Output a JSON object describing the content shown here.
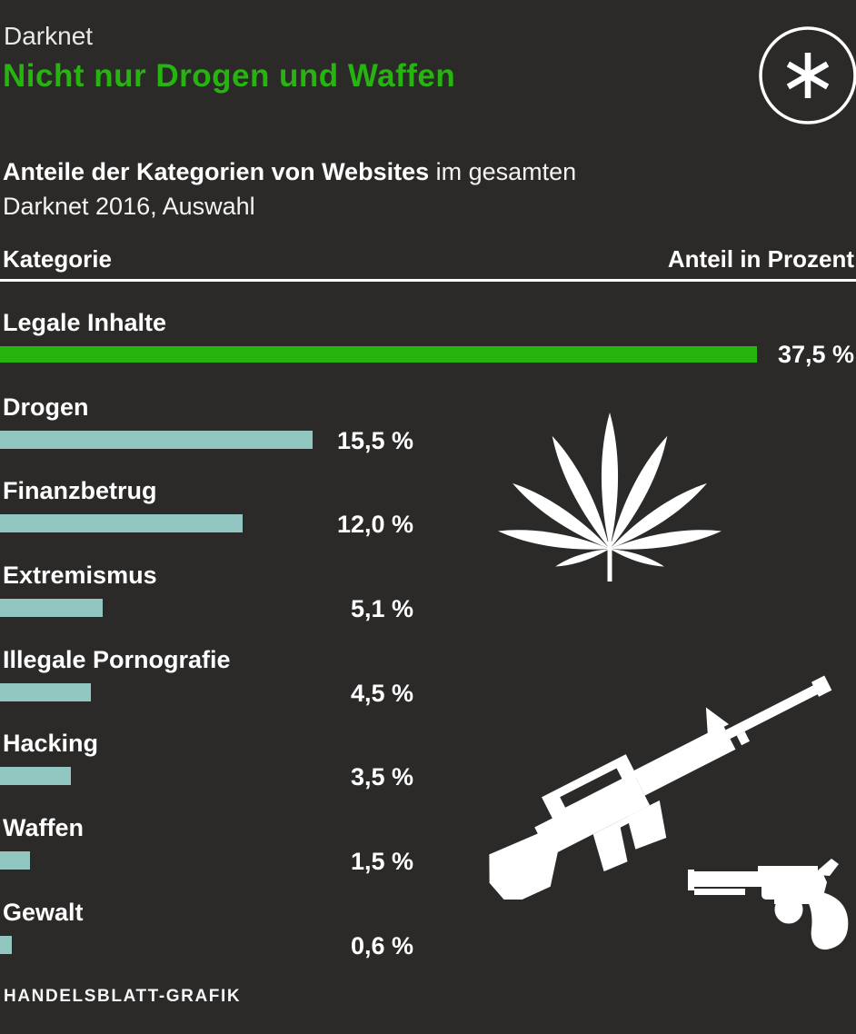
{
  "page": {
    "kicker": "Darknet",
    "title": "Nicht nur Drogen und Waffen",
    "subtitle_bold": "Anteile der Kategorien von Websites",
    "subtitle_rest": " im gesamten",
    "subtitle_line2": "Darknet 2016, Auswahl",
    "source": "HANDELSBLATT-GRAFIK"
  },
  "table_header": {
    "left": "Kategorie",
    "right": "Anteil in Prozent"
  },
  "chart_data": {
    "type": "bar",
    "orientation": "horizontal",
    "title": "Nicht nur Drogen und Waffen",
    "subtitle": "Anteile der Kategorien von Websites im gesamten Darknet 2016, Auswahl",
    "value_axis_label": "Anteil in Prozent",
    "categories": [
      "Legale Inhalte",
      "Drogen",
      "Finanzbetrug",
      "Extremismus",
      "Illegale Pornografie",
      "Hacking",
      "Waffen",
      "Gewalt"
    ],
    "values": [
      37.5,
      15.5,
      12.0,
      5.1,
      4.5,
      3.5,
      1.5,
      0.6
    ],
    "value_labels": [
      "37,5 %",
      "15,5 %",
      "12,0 %",
      "5,1 %",
      "4,5 %",
      "3,5 %",
      "1,5 %",
      "0,6 %"
    ],
    "highlight_index": 0,
    "xlim": [
      0,
      42.4
    ],
    "gridlines": false,
    "legend": "none"
  },
  "icons": {
    "logo": "asterisk-in-circle",
    "drugs": "cannabis-leaf",
    "weapons_rifle": "assault-rifle",
    "weapons_pistol": "revolver"
  },
  "colors": {
    "background": "#2b2a29",
    "accent_green": "#26b40e",
    "bar_teal": "#92c6c0",
    "text_white": "#ffffff",
    "kicker_gray": "#e9e9e9"
  }
}
